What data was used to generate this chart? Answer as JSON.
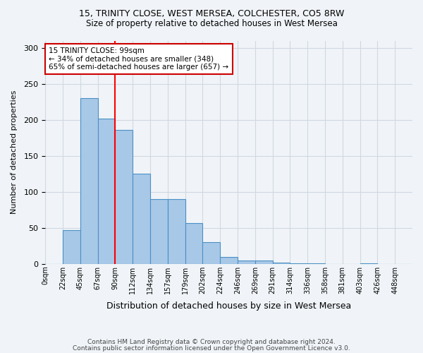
{
  "title1": "15, TRINITY CLOSE, WEST MERSEA, COLCHESTER, CO5 8RW",
  "title2": "Size of property relative to detached houses in West Mersea",
  "xlabel": "Distribution of detached houses by size in West Mersea",
  "ylabel": "Number of detached properties",
  "categories": [
    "0sqm",
    "22sqm",
    "45sqm",
    "67sqm",
    "90sqm",
    "112sqm",
    "134sqm",
    "157sqm",
    "179sqm",
    "202sqm",
    "224sqm",
    "246sqm",
    "269sqm",
    "291sqm",
    "314sqm",
    "336sqm",
    "358sqm",
    "381sqm",
    "403sqm",
    "426sqm",
    "448sqm"
  ],
  "bar_values": [
    0,
    47,
    230,
    202,
    186,
    125,
    90,
    90,
    57,
    30,
    10,
    5,
    5,
    2,
    1,
    1,
    0,
    0,
    1,
    0,
    0
  ],
  "bar_color": "#a8c8e8",
  "bar_edge_color": "#4a90c4",
  "ylim": [
    0,
    310
  ],
  "yticks": [
    0,
    50,
    100,
    150,
    200,
    250,
    300
  ],
  "property_line_x": 4,
  "annotation_text": "15 TRINITY CLOSE: 99sqm\n← 34% of detached houses are smaller (348)\n65% of semi-detached houses are larger (657) →",
  "annotation_box_color": "#ffffff",
  "annotation_box_edge": "#cc0000",
  "footer1": "Contains HM Land Registry data © Crown copyright and database right 2024.",
  "footer2": "Contains public sector information licensed under the Open Government Licence v3.0.",
  "bg_color": "#f0f4f8",
  "grid_color": "#d0d8e0"
}
